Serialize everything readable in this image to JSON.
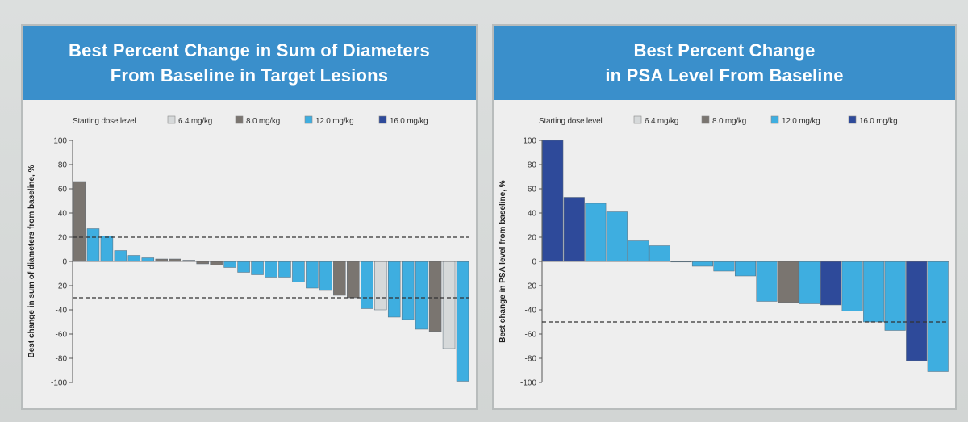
{
  "chart_data": [
    {
      "type": "bar",
      "title": "Best Percent Change in Sum of Diameters\nFrom Baseline in Target Lesions",
      "ylabel": "Best change in sum of diameters from baseline, %",
      "ylim": [
        -100,
        100
      ],
      "yticks": [
        100,
        80,
        60,
        40,
        20,
        0,
        -20,
        -40,
        -60,
        -80,
        -100
      ],
      "ytick_labels": [
        "100",
        "80",
        "60",
        "40",
        "20",
        "0",
        "-20",
        "-40",
        "-60",
        "-80",
        "-100"
      ],
      "reference_lines": [
        20,
        -30
      ],
      "legend_title": "Starting dose level",
      "legend_position": "top",
      "legend": [
        {
          "label": "6.4 mg/kg",
          "color": "#d6d9da"
        },
        {
          "label": "8.0 mg/kg",
          "color": "#7a7570"
        },
        {
          "label": "12.0 mg/kg",
          "color": "#3eaee0"
        },
        {
          "label": "16.0 mg/kg",
          "color": "#2e4a9a"
        }
      ],
      "bars": [
        {
          "value": 66,
          "dose": "8.0 mg/kg"
        },
        {
          "value": 27,
          "dose": "12.0 mg/kg"
        },
        {
          "value": 21,
          "dose": "12.0 mg/kg"
        },
        {
          "value": 9,
          "dose": "12.0 mg/kg"
        },
        {
          "value": 5,
          "dose": "12.0 mg/kg"
        },
        {
          "value": 3,
          "dose": "12.0 mg/kg"
        },
        {
          "value": 2,
          "dose": "8.0 mg/kg"
        },
        {
          "value": 2,
          "dose": "8.0 mg/kg"
        },
        {
          "value": 1,
          "dose": "8.0 mg/kg"
        },
        {
          "value": -2,
          "dose": "8.0 mg/kg"
        },
        {
          "value": -3,
          "dose": "8.0 mg/kg"
        },
        {
          "value": -5,
          "dose": "12.0 mg/kg"
        },
        {
          "value": -9,
          "dose": "12.0 mg/kg"
        },
        {
          "value": -11,
          "dose": "12.0 mg/kg"
        },
        {
          "value": -13,
          "dose": "12.0 mg/kg"
        },
        {
          "value": -13,
          "dose": "12.0 mg/kg"
        },
        {
          "value": -17,
          "dose": "12.0 mg/kg"
        },
        {
          "value": -22,
          "dose": "12.0 mg/kg"
        },
        {
          "value": -24,
          "dose": "12.0 mg/kg"
        },
        {
          "value": -28,
          "dose": "8.0 mg/kg"
        },
        {
          "value": -30,
          "dose": "8.0 mg/kg"
        },
        {
          "value": -39,
          "dose": "12.0 mg/kg"
        },
        {
          "value": -40,
          "dose": "6.4 mg/kg"
        },
        {
          "value": -46,
          "dose": "12.0 mg/kg"
        },
        {
          "value": -48,
          "dose": "12.0 mg/kg"
        },
        {
          "value": -56,
          "dose": "12.0 mg/kg"
        },
        {
          "value": -58,
          "dose": "8.0 mg/kg"
        },
        {
          "value": -72,
          "dose": "6.4 mg/kg"
        },
        {
          "value": -99,
          "dose": "12.0 mg/kg"
        }
      ]
    },
    {
      "type": "bar",
      "title": "Best Percent Change\nin PSA Level From Baseline",
      "ylabel": "Best change in PSA level from baseline, %",
      "ylim": [
        -100,
        100
      ],
      "yticks": [
        100,
        80,
        60,
        40,
        20,
        0,
        -20,
        -40,
        -60,
        -80,
        -100
      ],
      "ytick_labels": [
        "100",
        "80",
        "60",
        "40",
        "20",
        "0",
        "-20",
        "-40",
        "-60",
        "-80",
        "-100"
      ],
      "reference_lines": [
        -50
      ],
      "legend_title": "Starting dose level",
      "legend_position": "top",
      "legend": [
        {
          "label": "6.4 mg/kg",
          "color": "#d6d9da"
        },
        {
          "label": "8.0 mg/kg",
          "color": "#7a7570"
        },
        {
          "label": "12.0 mg/kg",
          "color": "#3eaee0"
        },
        {
          "label": "16.0 mg/kg",
          "color": "#2e4a9a"
        }
      ],
      "bars": [
        {
          "value": 100,
          "dose": "16.0 mg/kg"
        },
        {
          "value": 53,
          "dose": "16.0 mg/kg"
        },
        {
          "value": 48,
          "dose": "12.0 mg/kg"
        },
        {
          "value": 41,
          "dose": "12.0 mg/kg"
        },
        {
          "value": 17,
          "dose": "12.0 mg/kg"
        },
        {
          "value": 13,
          "dose": "12.0 mg/kg"
        },
        {
          "value": 0,
          "dose": "12.0 mg/kg"
        },
        {
          "value": -4,
          "dose": "12.0 mg/kg"
        },
        {
          "value": -8,
          "dose": "12.0 mg/kg"
        },
        {
          "value": -12,
          "dose": "12.0 mg/kg"
        },
        {
          "value": -33,
          "dose": "12.0 mg/kg"
        },
        {
          "value": -34,
          "dose": "8.0 mg/kg"
        },
        {
          "value": -35,
          "dose": "12.0 mg/kg"
        },
        {
          "value": -36,
          "dose": "16.0 mg/kg"
        },
        {
          "value": -41,
          "dose": "12.0 mg/kg"
        },
        {
          "value": -50,
          "dose": "12.0 mg/kg"
        },
        {
          "value": -57,
          "dose": "12.0 mg/kg"
        },
        {
          "value": -82,
          "dose": "16.0 mg/kg"
        },
        {
          "value": -91,
          "dose": "12.0 mg/kg"
        }
      ]
    }
  ]
}
